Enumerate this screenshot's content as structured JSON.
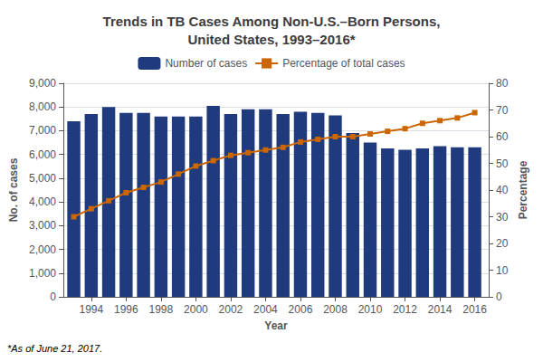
{
  "chart_data": {
    "type": "bar",
    "title": "Trends in TB Cases Among Non-U.S.–Born Persons,\nUnited States, 1993–2016*",
    "x": [
      1993,
      1994,
      1995,
      1996,
      1997,
      1998,
      1999,
      2000,
      2001,
      2002,
      2003,
      2004,
      2005,
      2006,
      2007,
      2008,
      2009,
      2010,
      2011,
      2012,
      2013,
      2014,
      2015,
      2016
    ],
    "xlabel": "Year",
    "ylabel": "No. of cases",
    "y2label": "Percentage",
    "series": [
      {
        "name": "Number of cases",
        "type": "bar",
        "color": "#1F3A7D",
        "values": [
          7400,
          7700,
          8000,
          7750,
          7750,
          7600,
          7600,
          7600,
          8050,
          7700,
          7900,
          7900,
          7700,
          7800,
          7750,
          7650,
          6900,
          6500,
          6250,
          6200,
          6250,
          6350,
          6300,
          6300
        ]
      },
      {
        "name": "Percentage of total cases",
        "type": "line",
        "axis": "y2",
        "color": "#CC6600",
        "marker": "square",
        "values": [
          30,
          33,
          36,
          39,
          41,
          43,
          46,
          49,
          51,
          53,
          54,
          55,
          56,
          58,
          59,
          60,
          60,
          61,
          62,
          63,
          65,
          66,
          67,
          69
        ]
      }
    ],
    "xlim": [
      1992.4,
      2016.8
    ],
    "xticks": [
      1994,
      1996,
      1998,
      2000,
      2002,
      2004,
      2006,
      2008,
      2010,
      2012,
      2014,
      2016
    ],
    "ylim": [
      0,
      9000
    ],
    "yticks": [
      0,
      {
        "value": 1000,
        "label": "1,000"
      },
      {
        "value": 2000,
        "label": "2,000"
      },
      {
        "value": 3000,
        "label": "3,000"
      },
      {
        "value": 4000,
        "label": "4,000"
      },
      {
        "value": 5000,
        "label": "5,000"
      },
      {
        "value": 6000,
        "label": "6,000"
      },
      {
        "value": 7000,
        "label": "7,000"
      },
      {
        "value": 8000,
        "label": "8,000"
      },
      {
        "value": 9000,
        "label": "9,000"
      }
    ],
    "y2lim": [
      0,
      80
    ],
    "y2ticks": [
      0,
      10,
      20,
      30,
      40,
      50,
      60,
      70,
      80
    ],
    "grid": true,
    "legend": "top",
    "footnote": "*As of June 21, 2017."
  }
}
